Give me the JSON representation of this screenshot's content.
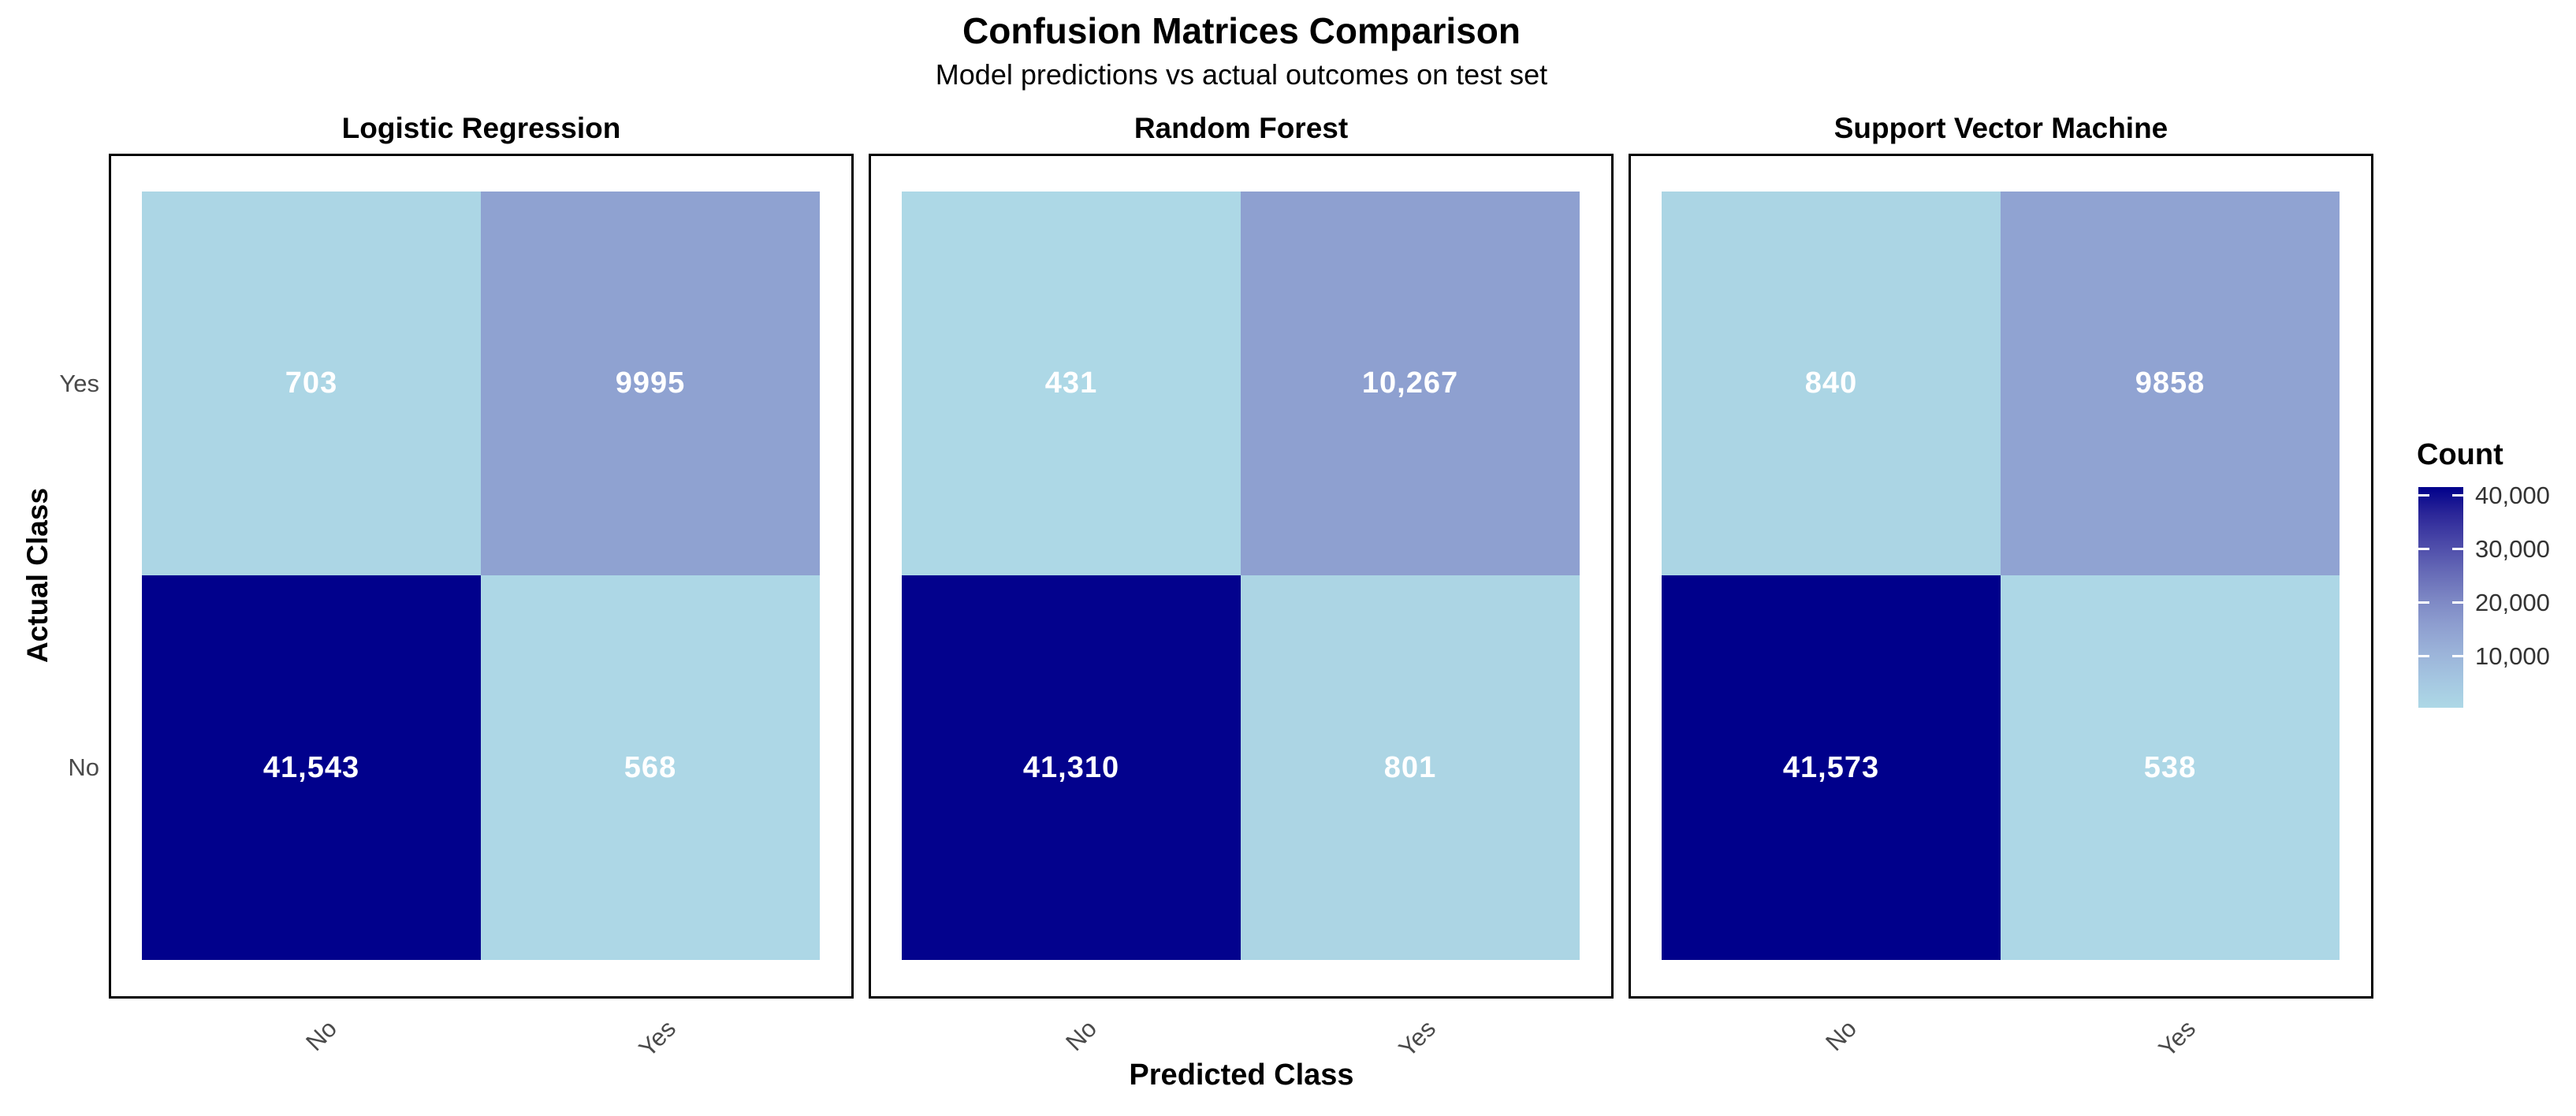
{
  "header": {
    "title": "Confusion Matrices Comparison",
    "subtitle": "Model predictions vs actual outcomes on test set"
  },
  "axes": {
    "x_title": "Predicted Class",
    "y_title": "Actual Class",
    "x_ticks": [
      "No",
      "Yes"
    ],
    "y_ticks": [
      "Yes",
      "No"
    ]
  },
  "legend": {
    "title": "Count",
    "tick_labels": [
      "40,000",
      "30,000",
      "20,000",
      "10,000"
    ],
    "tick_values": [
      40000,
      30000,
      20000,
      10000
    ],
    "low_color": "#ADD8E6",
    "high_color": "#00008B",
    "value_range": [
      431,
      41573
    ]
  },
  "chart_data": {
    "type": "heatmap",
    "x_categories": [
      "No",
      "Yes"
    ],
    "y_categories": [
      "Yes",
      "No"
    ],
    "xlabel": "Predicted Class",
    "ylabel": "Actual Class",
    "title": "Confusion Matrices Comparison",
    "subtitle": "Model predictions vs actual outcomes on test set",
    "legend_position": "right",
    "grid": false,
    "panels": [
      {
        "title": "Logistic Regression",
        "cells": [
          {
            "actual": "Yes",
            "predicted": "No",
            "value": 703,
            "label": "703",
            "color": "#ACD6E5"
          },
          {
            "actual": "Yes",
            "predicted": "Yes",
            "value": 9995,
            "label": "9995",
            "color": "#8FA2D1"
          },
          {
            "actual": "No",
            "predicted": "No",
            "value": 41543,
            "label": "41,543",
            "color": "#01018C"
          },
          {
            "actual": "No",
            "predicted": "Yes",
            "value": 568,
            "label": "568",
            "color": "#ADD7E6"
          }
        ]
      },
      {
        "title": "Random Forest",
        "cells": [
          {
            "actual": "Yes",
            "predicted": "No",
            "value": 431,
            "label": "431",
            "color": "#ADD8E6"
          },
          {
            "actual": "Yes",
            "predicted": "Yes",
            "value": 10267,
            "label": "10,267",
            "color": "#8EA0D0"
          },
          {
            "actual": "No",
            "predicted": "No",
            "value": 41310,
            "label": "41,310",
            "color": "#03028D"
          },
          {
            "actual": "No",
            "predicted": "Yes",
            "value": 801,
            "label": "801",
            "color": "#ACD5E4"
          }
        ]
      },
      {
        "title": "Support Vector Machine",
        "cells": [
          {
            "actual": "Yes",
            "predicted": "No",
            "value": 840,
            "label": "840",
            "color": "#ABD5E4"
          },
          {
            "actual": "Yes",
            "predicted": "Yes",
            "value": 9858,
            "label": "9858",
            "color": "#90A3D2"
          },
          {
            "actual": "No",
            "predicted": "No",
            "value": 41573,
            "label": "41,573",
            "color": "#00008B"
          },
          {
            "actual": "No",
            "predicted": "Yes",
            "value": 538,
            "label": "538",
            "color": "#ADD7E6"
          }
        ]
      }
    ]
  }
}
